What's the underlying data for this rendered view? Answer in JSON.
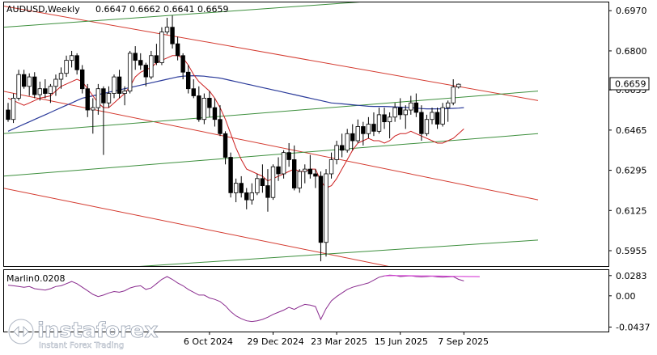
{
  "chart_data": {
    "type": "candlestick",
    "symbol_title": "AUDUSD,Weekly",
    "ohlc_values": "0.6647 0.6662 0.6641 0.6659",
    "last_price_label": "0.6659",
    "price_ticks": [
      "0.6970",
      "0.6800",
      "0.6635",
      "0.6465",
      "0.6295",
      "0.6125",
      "0.5955"
    ],
    "price_tick_values": [
      0.697,
      0.68,
      0.6635,
      0.6465,
      0.6295,
      0.6125,
      0.5955
    ],
    "price_range": [
      0.589,
      0.7005
    ],
    "x_labels": [
      "6 Oct 2024",
      "29 Dec 2024",
      "23 Mar 2025",
      "15 Jun 2025",
      "7 Sep 2025"
    ],
    "x_label_index": [
      38,
      50,
      62,
      74,
      86
    ],
    "candles": [
      [
        0.655,
        0.658,
        0.65,
        0.651
      ],
      [
        0.651,
        0.662,
        0.6495,
        0.66
      ],
      [
        0.66,
        0.672,
        0.659,
        0.67
      ],
      [
        0.67,
        0.672,
        0.664,
        0.665
      ],
      [
        0.665,
        0.6705,
        0.661,
        0.669
      ],
      [
        0.669,
        0.671,
        0.66,
        0.6615
      ],
      [
        0.6615,
        0.667,
        0.659,
        0.664
      ],
      [
        0.664,
        0.668,
        0.66,
        0.662
      ],
      [
        0.662,
        0.666,
        0.658,
        0.665
      ],
      [
        0.665,
        0.67,
        0.661,
        0.668
      ],
      [
        0.668,
        0.673,
        0.664,
        0.6705
      ],
      [
        0.6705,
        0.678,
        0.669,
        0.676
      ],
      [
        0.676,
        0.68,
        0.673,
        0.678
      ],
      [
        0.678,
        0.679,
        0.67,
        0.672
      ],
      [
        0.672,
        0.674,
        0.662,
        0.664
      ],
      [
        0.664,
        0.666,
        0.652,
        0.655
      ],
      [
        0.655,
        0.66,
        0.645,
        0.656
      ],
      [
        0.656,
        0.666,
        0.653,
        0.664
      ],
      [
        0.664,
        0.665,
        0.636,
        0.658
      ],
      [
        0.658,
        0.665,
        0.656,
        0.662
      ],
      [
        0.662,
        0.67,
        0.66,
        0.669
      ],
      [
        0.669,
        0.672,
        0.66,
        0.662
      ],
      [
        0.662,
        0.665,
        0.657,
        0.663
      ],
      [
        0.663,
        0.68,
        0.662,
        0.679
      ],
      [
        0.679,
        0.682,
        0.672,
        0.676
      ],
      [
        0.676,
        0.679,
        0.672,
        0.674
      ],
      [
        0.674,
        0.675,
        0.665,
        0.669
      ],
      [
        0.669,
        0.68,
        0.668,
        0.678
      ],
      [
        0.678,
        0.683,
        0.674,
        0.675
      ],
      [
        0.675,
        0.69,
        0.674,
        0.688
      ],
      [
        0.688,
        0.694,
        0.687,
        0.69
      ],
      [
        0.69,
        0.695,
        0.681,
        0.683
      ],
      [
        0.683,
        0.686,
        0.676,
        0.678
      ],
      [
        0.678,
        0.679,
        0.668,
        0.671
      ],
      [
        0.671,
        0.674,
        0.662,
        0.664
      ],
      [
        0.664,
        0.668,
        0.66,
        0.661
      ],
      [
        0.661,
        0.665,
        0.65,
        0.651
      ],
      [
        0.651,
        0.662,
        0.649,
        0.66
      ],
      [
        0.66,
        0.663,
        0.652,
        0.656
      ],
      [
        0.656,
        0.66,
        0.648,
        0.651
      ],
      [
        0.651,
        0.657,
        0.644,
        0.645
      ],
      [
        0.645,
        0.646,
        0.632,
        0.635
      ],
      [
        0.635,
        0.637,
        0.618,
        0.62
      ],
      [
        0.62,
        0.626,
        0.616,
        0.624
      ],
      [
        0.624,
        0.627,
        0.618,
        0.62
      ],
      [
        0.62,
        0.622,
        0.613,
        0.617
      ],
      [
        0.617,
        0.624,
        0.615,
        0.62
      ],
      [
        0.62,
        0.628,
        0.619,
        0.626
      ],
      [
        0.626,
        0.632,
        0.62,
        0.623
      ],
      [
        0.623,
        0.63,
        0.612,
        0.618
      ],
      [
        0.618,
        0.632,
        0.617,
        0.631
      ],
      [
        0.631,
        0.635,
        0.625,
        0.628
      ],
      [
        0.628,
        0.638,
        0.626,
        0.637
      ],
      [
        0.637,
        0.641,
        0.631,
        0.634
      ],
      [
        0.634,
        0.64,
        0.621,
        0.622
      ],
      [
        0.622,
        0.63,
        0.62,
        0.629
      ],
      [
        0.629,
        0.632,
        0.624,
        0.63
      ],
      [
        0.63,
        0.636,
        0.626,
        0.628
      ],
      [
        0.628,
        0.63,
        0.622,
        0.627
      ],
      [
        0.627,
        0.629,
        0.591,
        0.599
      ],
      [
        0.599,
        0.63,
        0.593,
        0.628
      ],
      [
        0.628,
        0.637,
        0.626,
        0.634
      ],
      [
        0.634,
        0.642,
        0.632,
        0.64
      ],
      [
        0.64,
        0.645,
        0.635,
        0.638
      ],
      [
        0.638,
        0.647,
        0.637,
        0.645
      ],
      [
        0.645,
        0.649,
        0.638,
        0.642
      ],
      [
        0.642,
        0.651,
        0.641,
        0.648
      ],
      [
        0.648,
        0.65,
        0.64,
        0.645
      ],
      [
        0.645,
        0.652,
        0.643,
        0.649
      ],
      [
        0.649,
        0.654,
        0.644,
        0.646
      ],
      [
        0.646,
        0.656,
        0.645,
        0.653
      ],
      [
        0.653,
        0.656,
        0.647,
        0.65
      ],
      [
        0.65,
        0.654,
        0.643,
        0.652
      ],
      [
        0.652,
        0.658,
        0.65,
        0.656
      ],
      [
        0.656,
        0.66,
        0.651,
        0.653
      ],
      [
        0.653,
        0.657,
        0.647,
        0.655
      ],
      [
        0.655,
        0.661,
        0.653,
        0.658
      ],
      [
        0.658,
        0.662,
        0.652,
        0.654
      ],
      [
        0.654,
        0.657,
        0.642,
        0.645
      ],
      [
        0.645,
        0.653,
        0.644,
        0.651
      ],
      [
        0.651,
        0.656,
        0.649,
        0.654
      ],
      [
        0.654,
        0.656,
        0.647,
        0.649
      ],
      [
        0.649,
        0.658,
        0.648,
        0.656
      ],
      [
        0.656,
        0.659,
        0.65,
        0.658
      ],
      [
        0.658,
        0.668,
        0.657,
        0.6647
      ],
      [
        0.6647,
        0.6662,
        0.6641,
        0.6659
      ]
    ],
    "ma_blue": [
      0.646,
      0.647,
      0.648,
      0.649,
      0.65,
      0.651,
      0.652,
      0.653,
      0.654,
      0.655,
      0.656,
      0.657,
      0.658,
      0.659,
      0.66,
      0.6605,
      0.661,
      0.6615,
      0.662,
      0.6625,
      0.663,
      0.6635,
      0.664,
      0.6645,
      0.665,
      0.6655,
      0.666,
      0.6665,
      0.667,
      0.6675,
      0.668,
      0.6685,
      0.669,
      0.6693,
      0.6694,
      0.6695,
      0.6694,
      0.6693,
      0.669,
      0.6688,
      0.6685,
      0.668,
      0.6675,
      0.667,
      0.6665,
      0.666,
      0.6655,
      0.665,
      0.6645,
      0.664,
      0.6635,
      0.663,
      0.6625,
      0.662,
      0.6615,
      0.661,
      0.6605,
      0.66,
      0.6595,
      0.659,
      0.6585,
      0.658,
      0.6578,
      0.6576,
      0.6574,
      0.6572,
      0.657,
      0.6568,
      0.6566,
      0.6565,
      0.6565,
      0.6565,
      0.6564,
      0.6563,
      0.6562,
      0.6561,
      0.656,
      0.6558,
      0.6556,
      0.6555,
      0.6555,
      0.6555,
      0.6555,
      0.6556,
      0.6557,
      0.6558,
      0.656
    ],
    "ma_red": [
      0.66,
      0.659,
      0.658,
      0.657,
      0.658,
      0.659,
      0.66,
      0.6605,
      0.661,
      0.663,
      0.665,
      0.666,
      0.667,
      0.668,
      0.667,
      0.664,
      0.661,
      0.658,
      0.656,
      0.656,
      0.658,
      0.66,
      0.662,
      0.665,
      0.669,
      0.671,
      0.672,
      0.673,
      0.675,
      0.676,
      0.677,
      0.678,
      0.678,
      0.677,
      0.674,
      0.67,
      0.667,
      0.665,
      0.663,
      0.66,
      0.656,
      0.651,
      0.645,
      0.639,
      0.634,
      0.63,
      0.629,
      0.628,
      0.627,
      0.625,
      0.626,
      0.627,
      0.628,
      0.629,
      0.63,
      0.629,
      0.629,
      0.63,
      0.63,
      0.625,
      0.622,
      0.623,
      0.626,
      0.63,
      0.634,
      0.638,
      0.641,
      0.642,
      0.643,
      0.642,
      0.642,
      0.641,
      0.642,
      0.644,
      0.645,
      0.645,
      0.646,
      0.645,
      0.644,
      0.643,
      0.642,
      0.641,
      0.641,
      0.642,
      0.643,
      0.645,
      0.647
    ],
    "channel_lines": [
      {
        "color": "#d43a2f",
        "idx": [
          -1,
          100
        ],
        "price": [
          0.699,
          0.659
        ]
      },
      {
        "color": "#d43a2f",
        "idx": [
          -1,
          100
        ],
        "price": [
          0.663,
          0.617
        ]
      },
      {
        "color": "#d43a2f",
        "idx": [
          -1,
          100
        ],
        "price": [
          0.622,
          0.576
        ]
      },
      {
        "color": "#3d8f3d",
        "idx": [
          -1,
          100
        ],
        "price": [
          0.69,
          0.706
        ]
      },
      {
        "color": "#3d8f3d",
        "idx": [
          -1,
          100
        ],
        "price": [
          0.645,
          0.663
        ]
      },
      {
        "color": "#3d8f3d",
        "idx": [
          -1,
          100
        ],
        "price": [
          0.627,
          0.645
        ]
      },
      {
        "color": "#3d8f3d",
        "idx": [
          -1,
          100
        ],
        "price": [
          0.585,
          0.6
        ]
      }
    ],
    "oscillator": {
      "name": "Marlin",
      "value_label": "0.0208",
      "ticks": [
        "0.0283",
        "0.00",
        "-0.0437"
      ],
      "tick_values": [
        0.0283,
        0.0,
        -0.0437
      ],
      "range": [
        -0.05,
        0.036
      ],
      "line_color": "#8a2c8f",
      "signal_color": "#d94fd9",
      "values": [
        0.015,
        0.014,
        0.013,
        0.012,
        0.013,
        0.01,
        0.009,
        0.008,
        0.01,
        0.013,
        0.014,
        0.017,
        0.02,
        0.017,
        0.012,
        0.007,
        0.002,
        -0.001,
        0.001,
        0.004,
        0.006,
        0.005,
        0.007,
        0.011,
        0.013,
        0.014,
        0.009,
        0.011,
        0.017,
        0.023,
        0.027,
        0.023,
        0.018,
        0.014,
        0.009,
        0.005,
        0.001,
        0.001,
        -0.003,
        -0.005,
        -0.008,
        -0.014,
        -0.022,
        -0.028,
        -0.032,
        -0.035,
        -0.036,
        -0.035,
        -0.033,
        -0.03,
        -0.026,
        -0.023,
        -0.02,
        -0.016,
        -0.019,
        -0.015,
        -0.012,
        -0.013,
        -0.015,
        -0.033,
        -0.018,
        -0.007,
        -0.001,
        0.004,
        0.009,
        0.012,
        0.014,
        0.016,
        0.018,
        0.022,
        0.026,
        0.028,
        0.029,
        0.0285,
        0.027,
        0.0275,
        0.028,
        0.027,
        0.0265,
        0.027,
        0.0275,
        0.0265,
        0.026,
        0.0265,
        0.027,
        0.023,
        0.0208
      ],
      "signal_start_index": 71,
      "signal_values": [
        0.028,
        0.0282,
        0.0283,
        0.0283,
        0.0282,
        0.0281,
        0.028,
        0.0279,
        0.0278,
        0.0277,
        0.0276,
        0.0275,
        0.0274,
        0.0273,
        0.0272,
        0.0271,
        0.027,
        0.0269,
        0.0268
      ]
    },
    "colors": {
      "bull_body": "#ffffff",
      "bear_body": "#000000",
      "candle_line": "#000000",
      "ma_blue": "#2a3a9a",
      "ma_red": "#cc2020",
      "price_box_bg": "#ffffff",
      "price_box_border": "#000000",
      "axis_text": "#000000",
      "grid_frame": "#000000"
    }
  },
  "watermark": {
    "brand": "instaforex",
    "tagline": "Instant Forex Trading"
  }
}
